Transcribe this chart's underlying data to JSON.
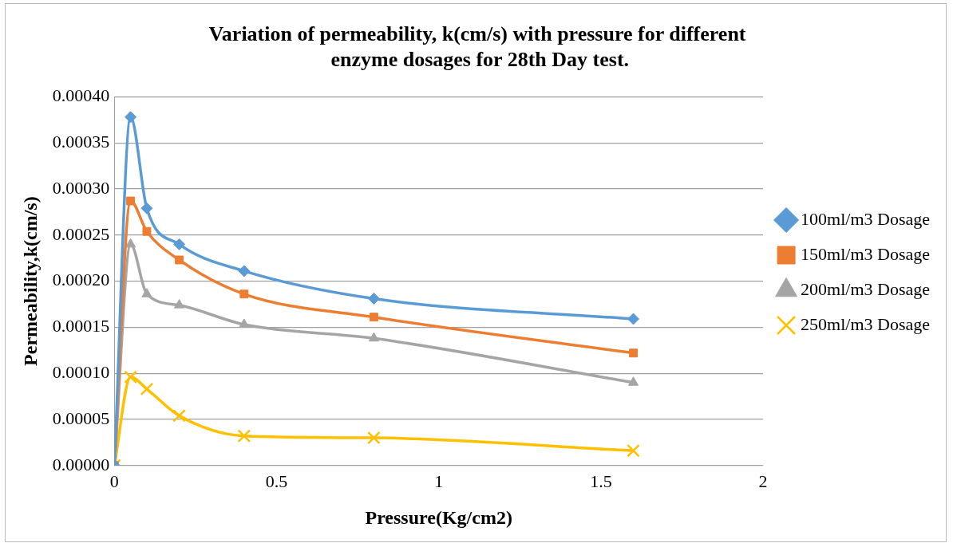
{
  "chart_data": {
    "type": "line",
    "title": "Variation of permeability, k(cm/s) with pressure for different enzyme dosages for 28th Day test.",
    "xlabel": "Pressure(Kg/cm2)",
    "ylabel": "Permeability,k(cm/s)",
    "x": [
      0,
      0.05,
      0.1,
      0.2,
      0.4,
      0.8,
      1.6
    ],
    "series": [
      {
        "name": "100ml/m3 Dosage",
        "color": "#5b9bd5",
        "marker": "diamond",
        "values": [
          0,
          0.000378,
          0.000279,
          0.00024,
          0.000211,
          0.000181,
          0.000159
        ]
      },
      {
        "name": "150ml/m3 Dosage",
        "color": "#ed7d31",
        "marker": "square",
        "values": [
          0,
          0.000287,
          0.000254,
          0.000223,
          0.000186,
          0.000161,
          0.000122
        ]
      },
      {
        "name": "200ml/m3 Dosage",
        "color": "#a5a5a5",
        "marker": "triangle",
        "values": [
          0,
          0.00024,
          0.000186,
          0.000174,
          0.000153,
          0.000138,
          9e-05
        ]
      },
      {
        "name": "250ml/m3 Dosage",
        "color": "#ffc000",
        "marker": "cross",
        "values": [
          0,
          9.6e-05,
          8.3e-05,
          5.4e-05,
          3.2e-05,
          3e-05,
          1.6e-05
        ]
      }
    ],
    "xlim": [
      0,
      2
    ],
    "xticks": [
      0,
      0.5,
      1,
      1.5,
      2
    ],
    "ylim": [
      0,
      0.0004
    ],
    "yticks": [
      {
        "value": 0,
        "label": "0.00000"
      },
      {
        "value": 5e-05,
        "label": "0.00005"
      },
      {
        "value": 0.0001,
        "label": "0.00010"
      },
      {
        "value": 0.00015,
        "label": "0.00015"
      },
      {
        "value": 0.0002,
        "label": "0.00020"
      },
      {
        "value": 0.00025,
        "label": "0.00025"
      },
      {
        "value": 0.0003,
        "label": "0.00030"
      },
      {
        "value": 0.00035,
        "label": "0.00035"
      },
      {
        "value": 0.0004,
        "label": "0.00040"
      }
    ],
    "grid": "y",
    "legend": "right",
    "line_style": "solid"
  }
}
